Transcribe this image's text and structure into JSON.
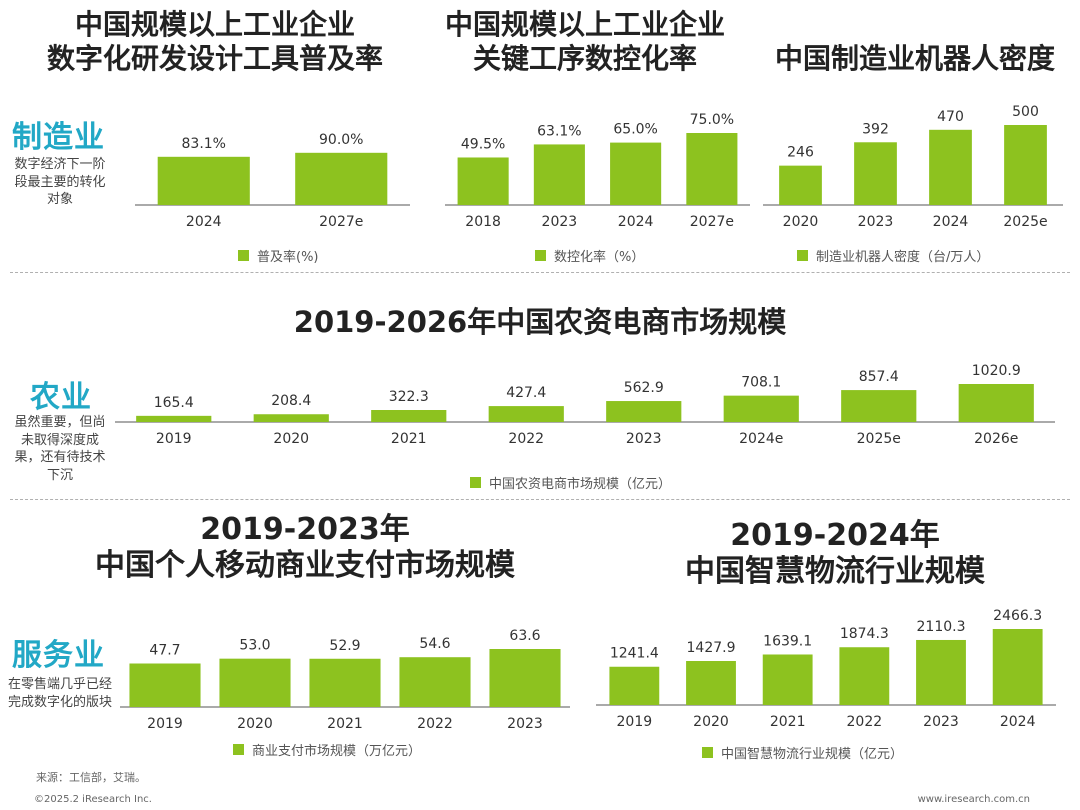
{
  "colors": {
    "bar": "#8dc21f",
    "accent": "#22a8c6",
    "axis": "#555555"
  },
  "sections": {
    "manufacturing": {
      "label": "制造业",
      "note": "数字经济下一阶段最主要的转化对象"
    },
    "agriculture": {
      "label": "农业",
      "note": "虽然重要，但尚未取得深度成果，还有待技术下沉"
    },
    "services": {
      "label": "服务业",
      "note": "在零售端几乎已经完成数字化的版块"
    }
  },
  "source": "来源：工信部，艾瑞。",
  "copyright": "©2025.2 iResearch Inc.",
  "website": "www.iresearch.com.cn",
  "chart_data": [
    {
      "id": "design-tools",
      "type": "bar",
      "title": "中国规模以上工业企业\n数字化研发设计工具普及率",
      "categories": [
        "2024",
        "2027e"
      ],
      "values": [
        83.1,
        90.0
      ],
      "labels": [
        "83.1%",
        "90.0%"
      ],
      "legend": "普及率(%)",
      "ylim": [
        0,
        100
      ]
    },
    {
      "id": "cnc-rate",
      "type": "bar",
      "title": "中国规模以上工业企业\n关键工序数控化率",
      "categories": [
        "2018",
        "2023",
        "2024",
        "2027e"
      ],
      "values": [
        49.5,
        63.1,
        65.0,
        75.0
      ],
      "labels": [
        "49.5%",
        "63.1%",
        "65.0%",
        "75.0%"
      ],
      "legend": "数控化率（%）",
      "ylim": [
        0,
        75
      ]
    },
    {
      "id": "robot-density",
      "type": "bar",
      "title": "中国制造业机器人密度",
      "categories": [
        "2020",
        "2023",
        "2024",
        "2025e"
      ],
      "values": [
        246,
        392,
        470,
        500
      ],
      "labels": [
        "246",
        "392",
        "470",
        "500"
      ],
      "legend": "制造业机器人密度（台/万人）",
      "ylim": [
        0,
        500
      ]
    },
    {
      "id": "agri-ecommerce",
      "type": "bar",
      "title": "2019-2026年中国农资电商市场规模",
      "categories": [
        "2019",
        "2020",
        "2021",
        "2022",
        "2023",
        "2024e",
        "2025e",
        "2026e"
      ],
      "values": [
        165.4,
        208.4,
        322.3,
        427.4,
        562.9,
        708.1,
        857.4,
        1020.9
      ],
      "labels": [
        "165.4",
        "208.4",
        "322.3",
        "427.4",
        "562.9",
        "708.1",
        "857.4",
        "1020.9"
      ],
      "legend": "中国农资电商市场规模（亿元）",
      "ylim": [
        0,
        1020.9
      ]
    },
    {
      "id": "mobile-payment",
      "type": "bar",
      "title": "2019-2023年\n中国个人移动商业支付市场规模",
      "categories": [
        "2019",
        "2020",
        "2021",
        "2022",
        "2023"
      ],
      "values": [
        47.7,
        53.0,
        52.9,
        54.6,
        63.6
      ],
      "labels": [
        "47.7",
        "53.0",
        "52.9",
        "54.6",
        "63.6"
      ],
      "legend": "商业支付市场规模（万亿元）",
      "ylim": [
        0,
        63.6
      ]
    },
    {
      "id": "smart-logistics",
      "type": "bar",
      "title": "2019-2024年\n中国智慧物流行业规模",
      "categories": [
        "2019",
        "2020",
        "2021",
        "2022",
        "2023",
        "2024"
      ],
      "values": [
        1241.4,
        1427.9,
        1639.1,
        1874.3,
        2110.3,
        2466.3
      ],
      "labels": [
        "1241.4",
        "1427.9",
        "1639.1",
        "1874.3",
        "2110.3",
        "2466.3"
      ],
      "legend": "中国智慧物流行业规模（亿元）",
      "ylim": [
        0,
        2466.3
      ]
    }
  ]
}
